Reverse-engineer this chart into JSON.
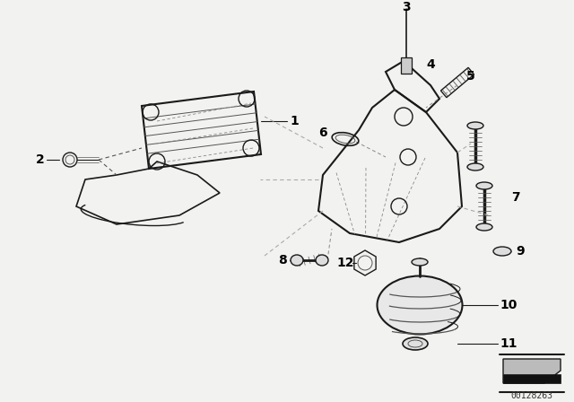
{
  "bg_color": "#f2f2f0",
  "line_color": "#1a1a1a",
  "text_color": "#000000",
  "watermark": "00128263",
  "figsize": [
    6.4,
    4.48
  ],
  "dpi": 100
}
